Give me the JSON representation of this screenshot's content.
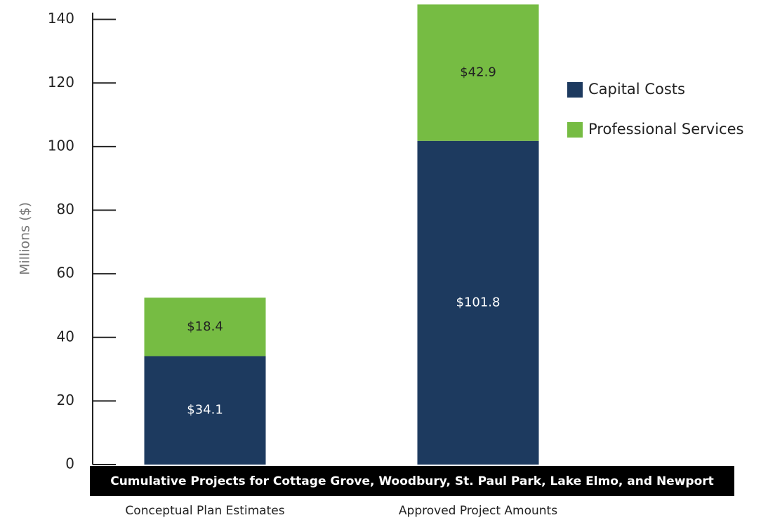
{
  "chart_data": {
    "type": "stacked_bar",
    "title": "Cumulative Projects for Cottage Grove, Woodbury, St. Paul Park, Lake Elmo, and Newport",
    "y_label": "Millions ($)",
    "categories": [
      "Conceptual Plan Estimates",
      "Approved Project Amounts"
    ],
    "series": [
      {
        "name": "Capital Costs",
        "color": "#1d3a5f",
        "values": [
          34.1,
          101.8
        ],
        "value_labels": [
          "$34.1",
          "$101.8"
        ]
      },
      {
        "name": "Professional Services",
        "color": "#76bc43",
        "values": [
          18.4,
          42.9
        ],
        "value_labels": [
          "$18.4",
          "$42.9"
        ]
      }
    ],
    "ylim": [
      0,
      145
    ],
    "yticks": [
      0,
      20,
      40,
      60,
      80,
      100,
      120,
      140
    ],
    "grid": false,
    "legend": "right"
  }
}
